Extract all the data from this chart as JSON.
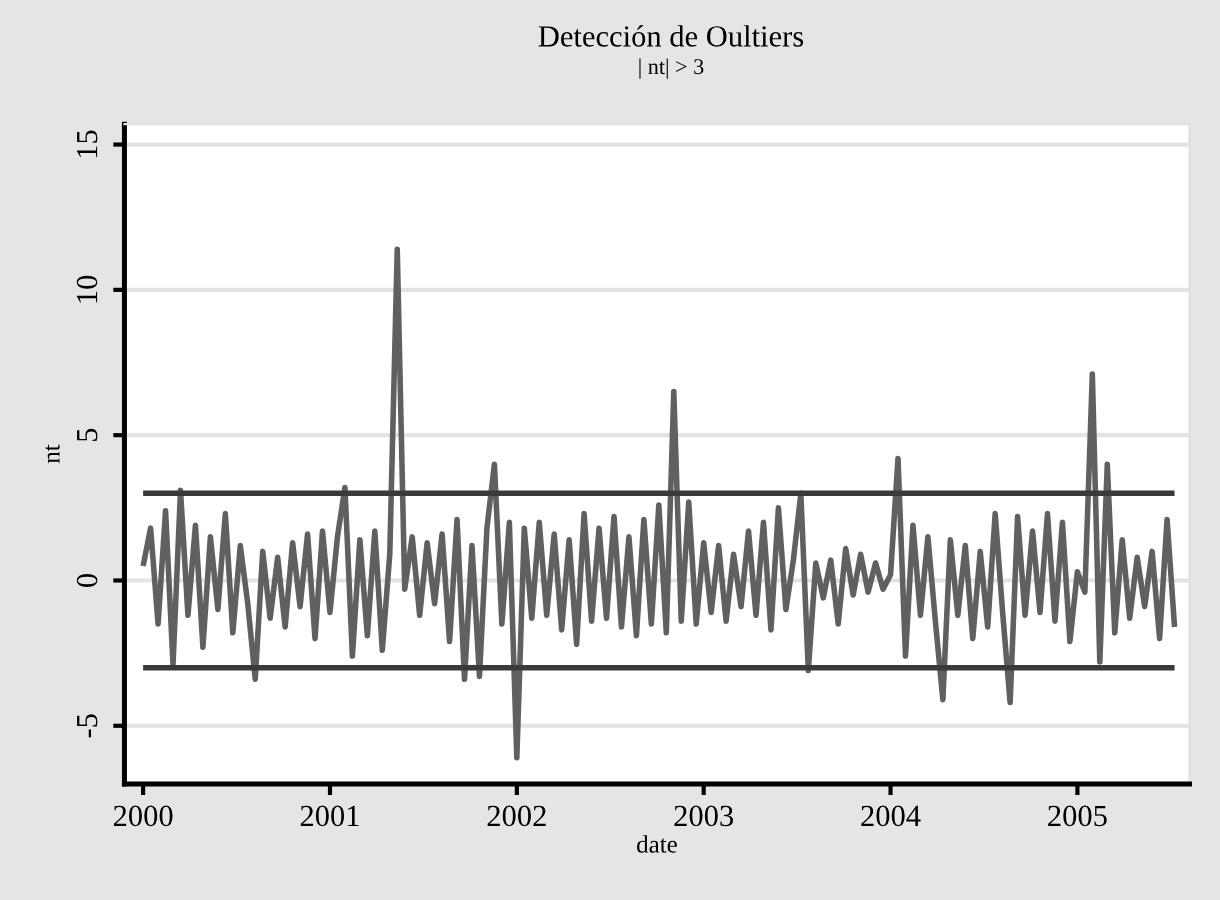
{
  "chart_data": {
    "type": "line",
    "title": "Detección de Oultiers",
    "subtitle": "| nt| > 3",
    "xlabel": "date",
    "ylabel": "nt",
    "x": [
      2000.0,
      2000.04,
      2000.08,
      2000.12,
      2000.16,
      2000.2,
      2000.24,
      2000.28,
      2000.32,
      2000.36,
      2000.4,
      2000.44,
      2000.48,
      2000.52,
      2000.56,
      2000.6,
      2000.64,
      2000.68,
      2000.72,
      2000.76,
      2000.8,
      2000.84,
      2000.88,
      2000.92,
      2000.96,
      2001.0,
      2001.04,
      2001.08,
      2001.12,
      2001.16,
      2001.2,
      2001.24,
      2001.28,
      2001.32,
      2001.36,
      2001.4,
      2001.44,
      2001.48,
      2001.52,
      2001.56,
      2001.6,
      2001.64,
      2001.68,
      2001.72,
      2001.76,
      2001.8,
      2001.84,
      2001.88,
      2001.92,
      2001.96,
      2002.0,
      2002.04,
      2002.08,
      2002.12,
      2002.16,
      2002.2,
      2002.24,
      2002.28,
      2002.32,
      2002.36,
      2002.4,
      2002.44,
      2002.48,
      2002.52,
      2002.56,
      2002.6,
      2002.64,
      2002.68,
      2002.72,
      2002.76,
      2002.8,
      2002.84,
      2002.88,
      2002.92,
      2002.96,
      2003.0,
      2003.04,
      2003.08,
      2003.12,
      2003.16,
      2003.2,
      2003.24,
      2003.28,
      2003.32,
      2003.36,
      2003.4,
      2003.44,
      2003.48,
      2003.52,
      2003.56,
      2003.6,
      2003.64,
      2003.68,
      2003.72,
      2003.76,
      2003.8,
      2003.84,
      2003.88,
      2003.92,
      2003.96,
      2004.0,
      2004.04,
      2004.08,
      2004.12,
      2004.16,
      2004.2,
      2004.24,
      2004.28,
      2004.32,
      2004.36,
      2004.4,
      2004.44,
      2004.48,
      2004.52,
      2004.56,
      2004.6,
      2004.64,
      2004.68,
      2004.72,
      2004.76,
      2004.8,
      2004.84,
      2004.88,
      2004.92,
      2004.96,
      2005.0,
      2005.04,
      2005.08,
      2005.12,
      2005.16,
      2005.2,
      2005.24,
      2005.28,
      2005.32,
      2005.36,
      2005.4,
      2005.44,
      2005.48,
      2005.52
    ],
    "series": [
      {
        "color": "#606060",
        "values": [
          0.5,
          1.8,
          -1.5,
          2.4,
          -2.9,
          3.1,
          -1.2,
          1.9,
          -2.3,
          1.5,
          -1.0,
          2.3,
          -1.8,
          1.2,
          -0.8,
          -3.4,
          1.0,
          -1.3,
          0.8,
          -1.6,
          1.3,
          -0.9,
          1.6,
          -2.0,
          1.7,
          -1.1,
          1.5,
          3.2,
          -2.6,
          1.4,
          -1.9,
          1.7,
          -2.4,
          0.9,
          11.4,
          -0.3,
          1.5,
          -1.2,
          1.3,
          -0.8,
          1.6,
          -2.1,
          2.1,
          -3.4,
          1.2,
          -3.3,
          1.8,
          4.0,
          -1.5,
          2.0,
          -6.1,
          1.8,
          -1.3,
          2.0,
          -1.2,
          1.6,
          -1.7,
          1.4,
          -2.2,
          2.3,
          -1.4,
          1.8,
          -1.3,
          2.2,
          -1.6,
          1.5,
          -1.9,
          2.1,
          -1.5,
          2.6,
          -1.8,
          6.5,
          -1.4,
          2.7,
          -1.5,
          1.3,
          -1.1,
          1.2,
          -1.4,
          0.9,
          -0.9,
          1.7,
          -1.2,
          2.0,
          -1.7,
          2.5,
          -1.0,
          0.7,
          3.0,
          -3.1,
          0.6,
          -0.6,
          0.7,
          -1.5,
          1.1,
          -0.5,
          0.9,
          -0.4,
          0.6,
          -0.3,
          0.2,
          4.2,
          -2.6,
          1.9,
          -1.2,
          1.5,
          -1.4,
          -4.1,
          1.4,
          -1.2,
          1.2,
          -2.0,
          1.0,
          -1.6,
          2.3,
          -1.1,
          -4.2,
          2.2,
          -1.2,
          1.7,
          -1.1,
          2.3,
          -1.4,
          2.0,
          -2.1,
          0.3,
          -0.4,
          7.1,
          -2.8,
          4.0,
          -1.8,
          1.4,
          -1.3,
          0.8,
          -0.9,
          1.0,
          -2.0,
          2.1,
          -1.6
        ]
      }
    ],
    "ref_lines": [
      {
        "axis": "y",
        "value": 3,
        "color": "#3a3a3a"
      },
      {
        "axis": "y",
        "value": -3,
        "color": "#3a3a3a"
      }
    ],
    "xlim": [
      1999.9,
      2005.6
    ],
    "xticks": [
      2000,
      2001,
      2002,
      2003,
      2004,
      2005
    ],
    "ylim": [
      -7,
      15.7
    ],
    "yticks": [
      -5,
      0,
      5,
      10,
      15
    ],
    "grid": "y"
  }
}
